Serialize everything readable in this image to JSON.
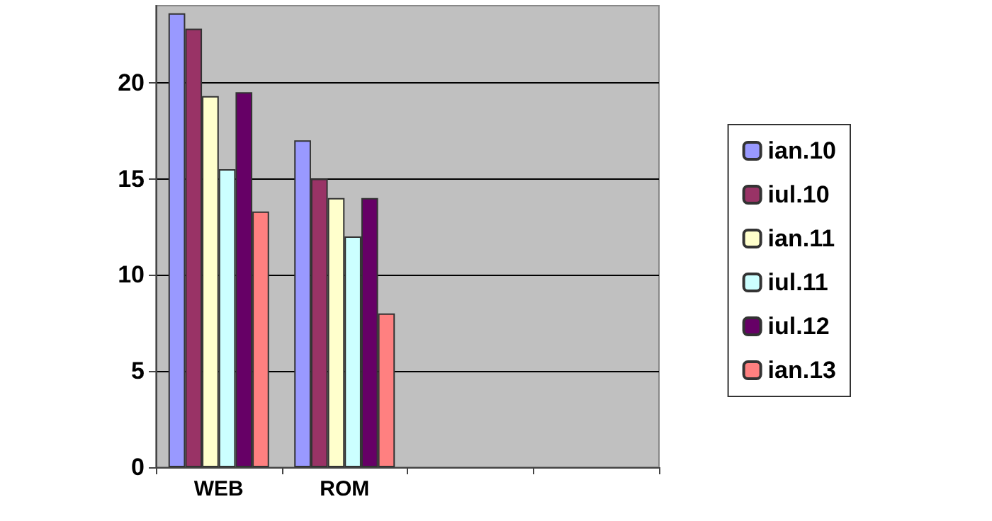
{
  "chart_data": {
    "type": "bar",
    "categories": [
      "WEB",
      "ROM",
      null,
      null
    ],
    "series": [
      {
        "name": "ian.10",
        "color": "#9999ff",
        "values": [
          23.6,
          17.0,
          null,
          null
        ]
      },
      {
        "name": "iul.10",
        "color": "#993366",
        "values": [
          22.8,
          15.0,
          null,
          null
        ]
      },
      {
        "name": "ian.11",
        "color": "#ffffcc",
        "values": [
          19.3,
          14.0,
          null,
          null
        ]
      },
      {
        "name": "iul.11",
        "color": "#ccffff",
        "values": [
          15.5,
          12.0,
          null,
          null
        ]
      },
      {
        "name": "iul.12",
        "color": "#660066",
        "values": [
          19.5,
          14.0,
          null,
          null
        ]
      },
      {
        "name": "ian.13",
        "color": "#ff8080",
        "values": [
          13.3,
          8.0,
          null,
          null
        ]
      }
    ],
    "ylim": [
      0,
      24
    ],
    "yticks": [
      0,
      5,
      10,
      15,
      20
    ],
    "grid": "y",
    "legend": "right"
  }
}
